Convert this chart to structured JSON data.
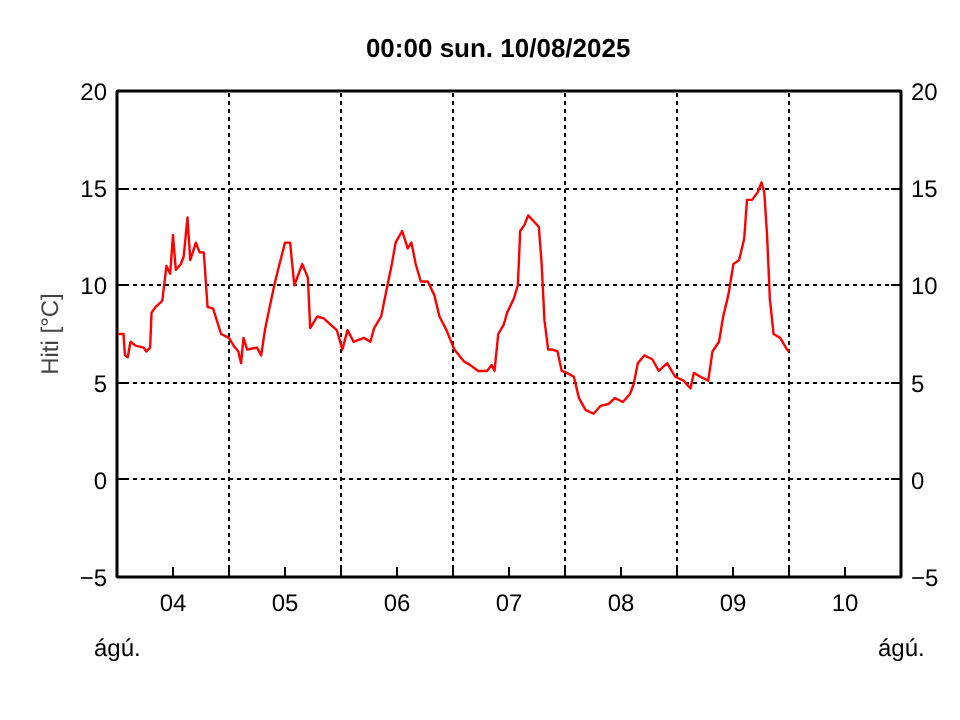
{
  "chart_data": {
    "type": "line",
    "title": "00:00   sun.  10/08/2025",
    "ylabel": "Hiti [°C]",
    "annotations": [
      "ágú.",
      "ágú."
    ],
    "xlim": [
      "2025-08-04",
      "2025-08-11"
    ],
    "xticks": [
      {
        "value": "2025-08-04T00:00",
        "label": null
      },
      {
        "value": "2025-08-04T12:00",
        "label": "04"
      },
      {
        "value": "2025-08-05T00:00",
        "label": null
      },
      {
        "value": "2025-08-05T12:00",
        "label": "05"
      },
      {
        "value": "2025-08-06T00:00",
        "label": null
      },
      {
        "value": "2025-08-06T12:00",
        "label": "06"
      },
      {
        "value": "2025-08-07T00:00",
        "label": null
      },
      {
        "value": "2025-08-07T12:00",
        "label": "07"
      },
      {
        "value": "2025-08-08T00:00",
        "label": null
      },
      {
        "value": "2025-08-08T12:00",
        "label": "08"
      },
      {
        "value": "2025-08-09T00:00",
        "label": null
      },
      {
        "value": "2025-08-09T12:00",
        "label": "09"
      },
      {
        "value": "2025-08-10T00:00",
        "label": null
      },
      {
        "value": "2025-08-10T12:00",
        "label": "10"
      },
      {
        "value": "2025-08-11T00:00",
        "label": null
      }
    ],
    "ylim": [
      -5,
      20
    ],
    "yticks": [
      -5,
      0,
      5,
      10,
      15,
      20
    ],
    "y2lim": [
      -5,
      20
    ],
    "y2ticks": [
      -5,
      0,
      5,
      10,
      15,
      20
    ],
    "grid": true,
    "line_style": "solid",
    "marker": "none",
    "series": [
      {
        "color": "#ff0000",
        "x": [
          "2025-08-04T00:18",
          "2025-08-04T01:24",
          "2025-08-04T01:42",
          "2025-08-04T02:18",
          "2025-08-04T02:54",
          "2025-08-04T04:00",
          "2025-08-04T05:42",
          "2025-08-04T06:18",
          "2025-08-04T07:06",
          "2025-08-04T07:24",
          "2025-08-04T08:18",
          "2025-08-04T09:42",
          "2025-08-04T10:36",
          "2025-08-04T11:24",
          "2025-08-04T12:00",
          "2025-08-04T12:36",
          "2025-08-04T13:42",
          "2025-08-04T14:18",
          "2025-08-04T15:06",
          "2025-08-04T15:42",
          "2025-08-04T16:54",
          "2025-08-04T17:42",
          "2025-08-04T18:36",
          "2025-08-04T19:24",
          "2025-08-04T20:36",
          "2025-08-04T22:18",
          "2025-08-05T00:00",
          "2025-08-05T01:00",
          "2025-08-05T02:00",
          "2025-08-05T02:36",
          "2025-08-05T03:06",
          "2025-08-05T03:54",
          "2025-08-05T06:00",
          "2025-08-05T06:54",
          "2025-08-05T07:42",
          "2025-08-05T08:54",
          "2025-08-05T09:42",
          "2025-08-05T10:18",
          "2025-08-05T12:00",
          "2025-08-05T13:06",
          "2025-08-05T14:00",
          "2025-08-05T15:42",
          "2025-08-05T16:54",
          "2025-08-05T17:24",
          "2025-08-05T18:54",
          "2025-08-05T20:18",
          "2025-08-05T21:42",
          "2025-08-05T23:06",
          "2025-08-06T00:18",
          "2025-08-06T01:24",
          "2025-08-06T02:42",
          "2025-08-06T04:54",
          "2025-08-06T06:18",
          "2025-08-06T07:06",
          "2025-08-06T08:36",
          "2025-08-06T09:42",
          "2025-08-06T10:54",
          "2025-08-06T11:42",
          "2025-08-06T13:06",
          "2025-08-06T14:18",
          "2025-08-06T15:06",
          "2025-08-06T16:00",
          "2025-08-06T17:06",
          "2025-08-06T18:36",
          "2025-08-06T20:00",
          "2025-08-06T21:06",
          "2025-08-06T22:36",
          "2025-08-07T00:18",
          "2025-08-07T02:18",
          "2025-08-07T03:42",
          "2025-08-07T05:24",
          "2025-08-07T07:18",
          "2025-08-07T08:18",
          "2025-08-07T08:54",
          "2025-08-07T09:42",
          "2025-08-07T10:54",
          "2025-08-07T11:36",
          "2025-08-07T13:00",
          "2025-08-07T13:54",
          "2025-08-07T14:24",
          "2025-08-07T15:18",
          "2025-08-07T16:06",
          "2025-08-07T17:18",
          "2025-08-07T18:24",
          "2025-08-07T19:00",
          "2025-08-07T19:36",
          "2025-08-07T20:24",
          "2025-08-07T21:18",
          "2025-08-07T22:24",
          "2025-08-07T23:18",
          "2025-08-08T00:24",
          "2025-08-08T01:54",
          "2025-08-08T03:00",
          "2025-08-08T04:24",
          "2025-08-08T06:06",
          "2025-08-08T07:36",
          "2025-08-08T09:18",
          "2025-08-08T10:42",
          "2025-08-08T12:24",
          "2025-08-08T13:54",
          "2025-08-08T14:42",
          "2025-08-08T15:36",
          "2025-08-08T17:00",
          "2025-08-08T18:42",
          "2025-08-08T20:06",
          "2025-08-08T21:54",
          "2025-08-08T23:36",
          "2025-08-09T01:24",
          "2025-08-09T02:54",
          "2025-08-09T03:36",
          "2025-08-09T05:00",
          "2025-08-09T06:42",
          "2025-08-09T07:36",
          "2025-08-09T09:00",
          "2025-08-09T09:54",
          "2025-08-09T11:00",
          "2025-08-09T12:06",
          "2025-08-09T13:18",
          "2025-08-09T14:24",
          "2025-08-09T15:00",
          "2025-08-09T16:06",
          "2025-08-09T17:18",
          "2025-08-09T18:06",
          "2025-08-09T18:42",
          "2025-08-09T19:18",
          "2025-08-09T19:54",
          "2025-08-09T20:42",
          "2025-08-09T22:06",
          "2025-08-09T23:36",
          "2025-08-10T00:00"
        ],
        "values": [
          7.5,
          7.5,
          6.4,
          6.3,
          7.1,
          6.9,
          6.8,
          6.6,
          6.8,
          8.6,
          8.9,
          9.2,
          11.0,
          10.6,
          12.6,
          10.8,
          11.1,
          11.5,
          13.5,
          11.3,
          12.2,
          11.7,
          11.7,
          8.9,
          8.8,
          7.5,
          7.3,
          6.9,
          6.6,
          6.0,
          7.3,
          6.7,
          6.8,
          6.4,
          7.7,
          9.1,
          10.0,
          10.6,
          12.2,
          12.2,
          10.0,
          11.1,
          10.4,
          7.8,
          8.4,
          8.3,
          8.0,
          7.7,
          6.7,
          7.7,
          7.1,
          7.3,
          7.1,
          7.8,
          8.4,
          9.7,
          11.1,
          12.2,
          12.8,
          11.9,
          12.2,
          11.1,
          10.2,
          10.2,
          9.5,
          8.4,
          7.7,
          6.7,
          6.1,
          5.9,
          5.6,
          5.6,
          5.9,
          5.6,
          7.5,
          8.0,
          8.6,
          9.3,
          10.0,
          12.8,
          13.1,
          13.6,
          13.3,
          13.0,
          11.1,
          8.2,
          6.7,
          6.7,
          6.6,
          5.6,
          5.5,
          5.3,
          4.2,
          3.6,
          3.4,
          3.8,
          3.9,
          4.2,
          4.0,
          4.4,
          4.9,
          6.0,
          6.4,
          6.2,
          5.6,
          6.0,
          5.3,
          5.1,
          4.7,
          5.5,
          5.3,
          5.1,
          6.6,
          7.1,
          8.4,
          9.5,
          11.1,
          11.3,
          12.4,
          14.4,
          14.4,
          14.8,
          15.3,
          14.8,
          12.6,
          9.3,
          7.5,
          7.3,
          6.7,
          6.6
        ]
      }
    ]
  }
}
